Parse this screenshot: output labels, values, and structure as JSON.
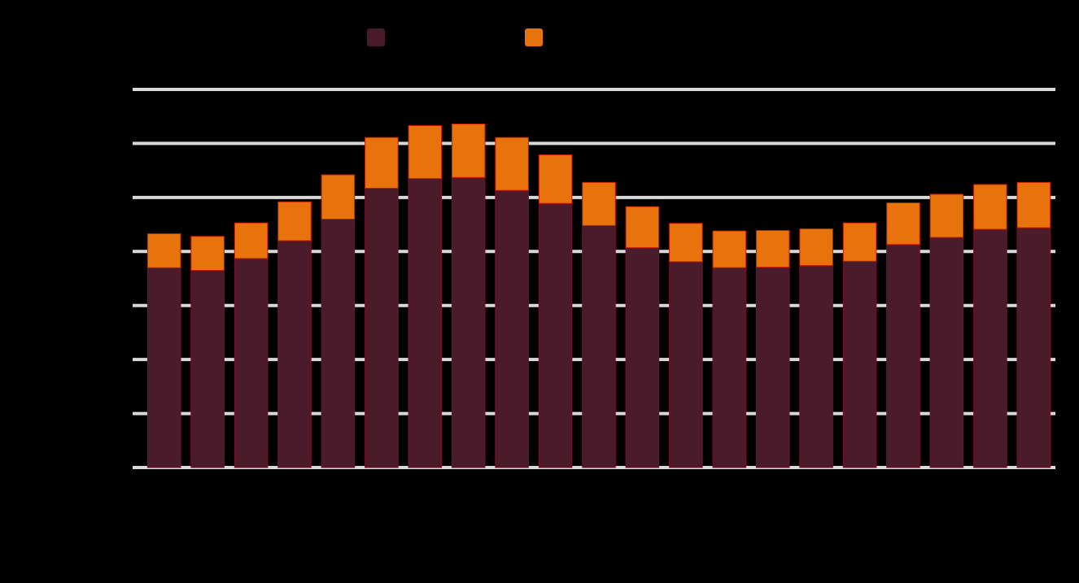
{
  "chart_data": {
    "type": "bar",
    "stacked": true,
    "categories": [
      "",
      "",
      "",
      "",
      "",
      "",
      "",
      "",
      "",
      "",
      "",
      "",
      "",
      "",
      "",
      "",
      "",
      "",
      "",
      "",
      ""
    ],
    "series": [
      {
        "name": "",
        "color": "#4A1C2B",
        "values": [
          3.7,
          3.65,
          3.87,
          4.2,
          4.6,
          5.17,
          5.35,
          5.37,
          5.13,
          4.89,
          4.48,
          4.07,
          3.81,
          3.7,
          3.71,
          3.74,
          3.82,
          4.13,
          4.26,
          4.41,
          4.44
        ]
      },
      {
        "name": "",
        "color": "#E8720C",
        "values": [
          0.63,
          0.63,
          0.66,
          0.72,
          0.82,
          0.94,
          0.98,
          0.99,
          0.98,
          0.9,
          0.8,
          0.76,
          0.71,
          0.68,
          0.68,
          0.68,
          0.71,
          0.77,
          0.8,
          0.83,
          0.84
        ]
      }
    ],
    "ylim": [
      0,
      7
    ],
    "grid": true,
    "legend_position": "top",
    "title": "",
    "xlabel": "",
    "ylabel": "",
    "gridline_color": "#D9D9D9"
  }
}
